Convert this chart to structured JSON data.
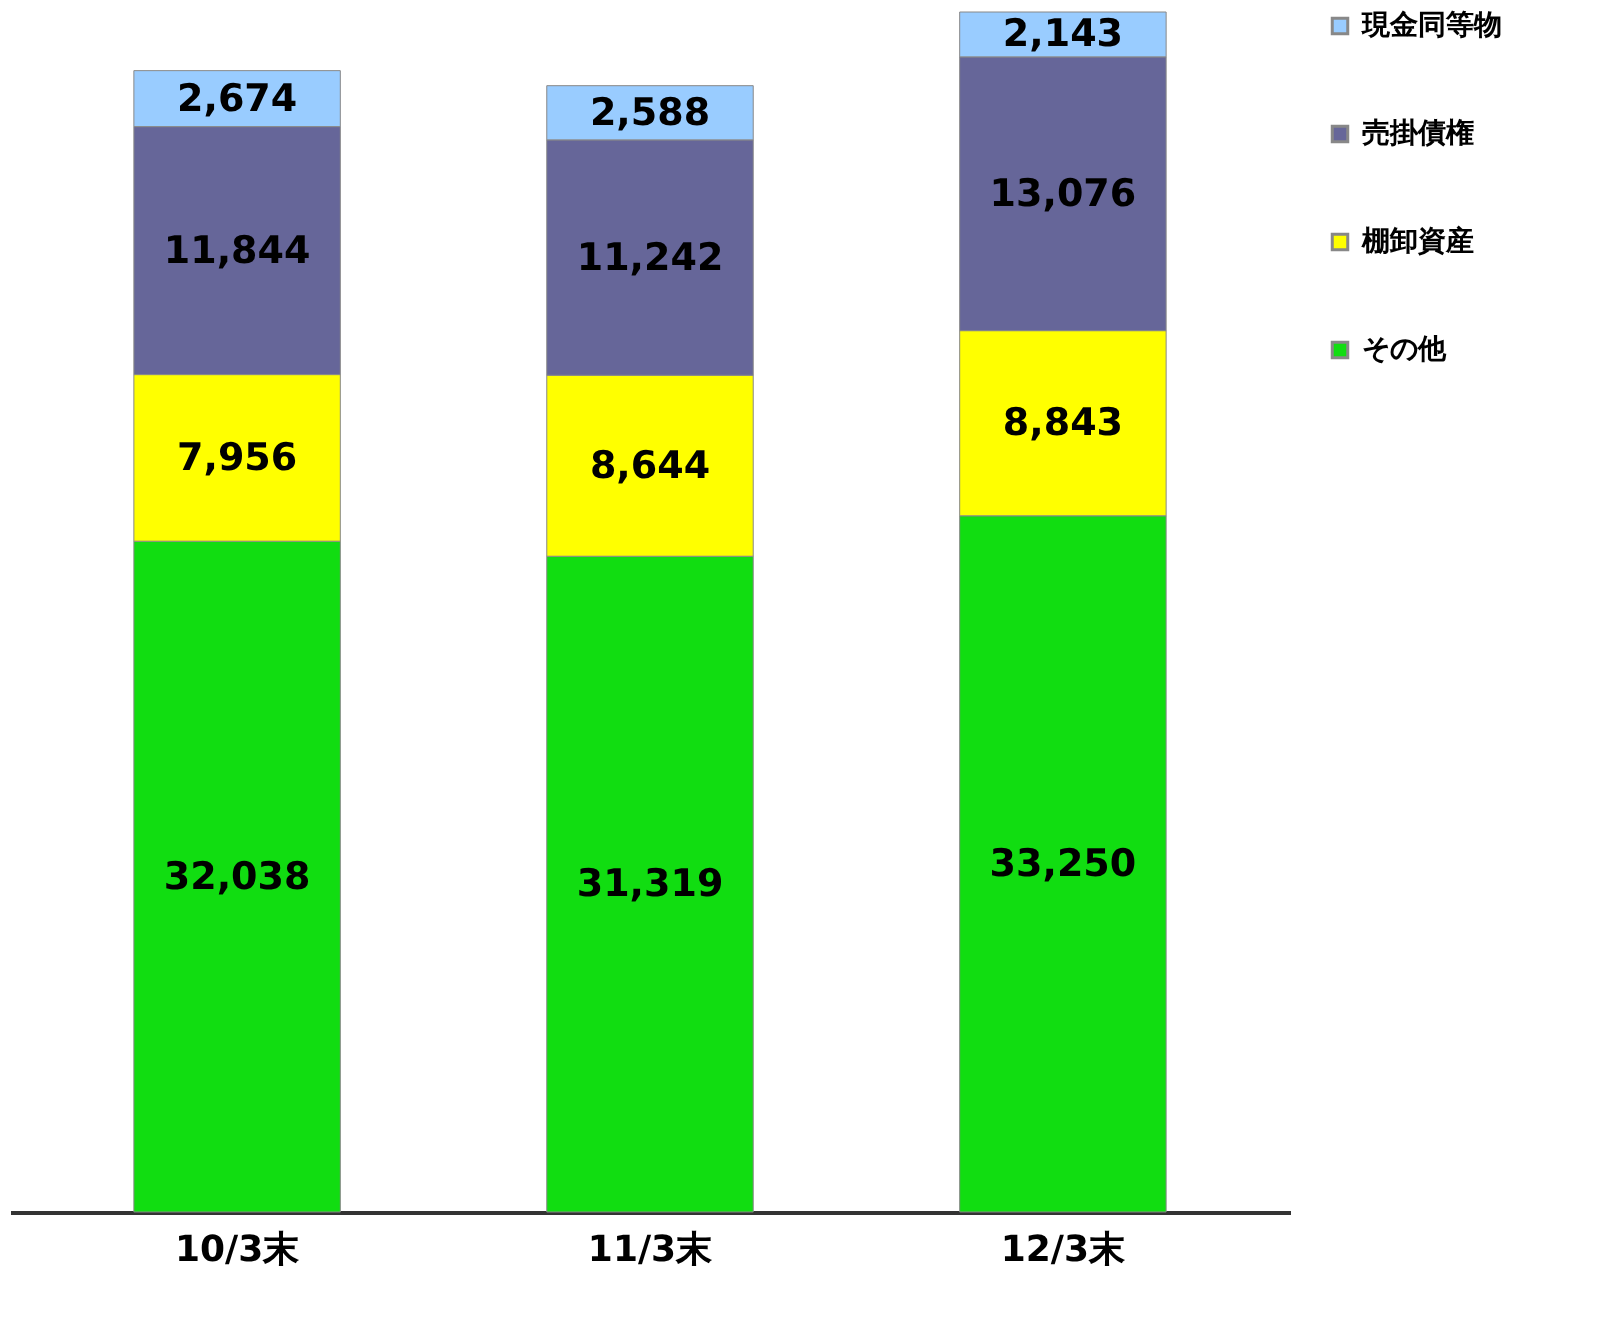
{
  "chart_data": {
    "type": "bar",
    "stacked": true,
    "legend": "right",
    "grid": false,
    "categories": [
      "10/3末",
      "11/3末",
      "12/3末"
    ],
    "series": [
      {
        "name": "その他",
        "color": "#11dd11",
        "values": [
          32038,
          31319,
          33250
        ],
        "value_labels": [
          "32,038",
          "31,319",
          "33,250"
        ]
      },
      {
        "name": "棚卸資産",
        "color": "#ffff00",
        "values": [
          7956,
          8644,
          8843
        ],
        "value_labels": [
          "7,956",
          "8,644",
          "8,843"
        ]
      },
      {
        "name": "売掛債権",
        "color": "#666699",
        "values": [
          11844,
          11242,
          13076
        ],
        "value_labels": [
          "11,844",
          "11,242",
          "13,076"
        ]
      },
      {
        "name": "現金同等物",
        "color": "#99ccff",
        "values": [
          2674,
          2588,
          2143
        ],
        "value_labels": [
          "2,674",
          "2,588",
          "2,143"
        ]
      }
    ]
  }
}
